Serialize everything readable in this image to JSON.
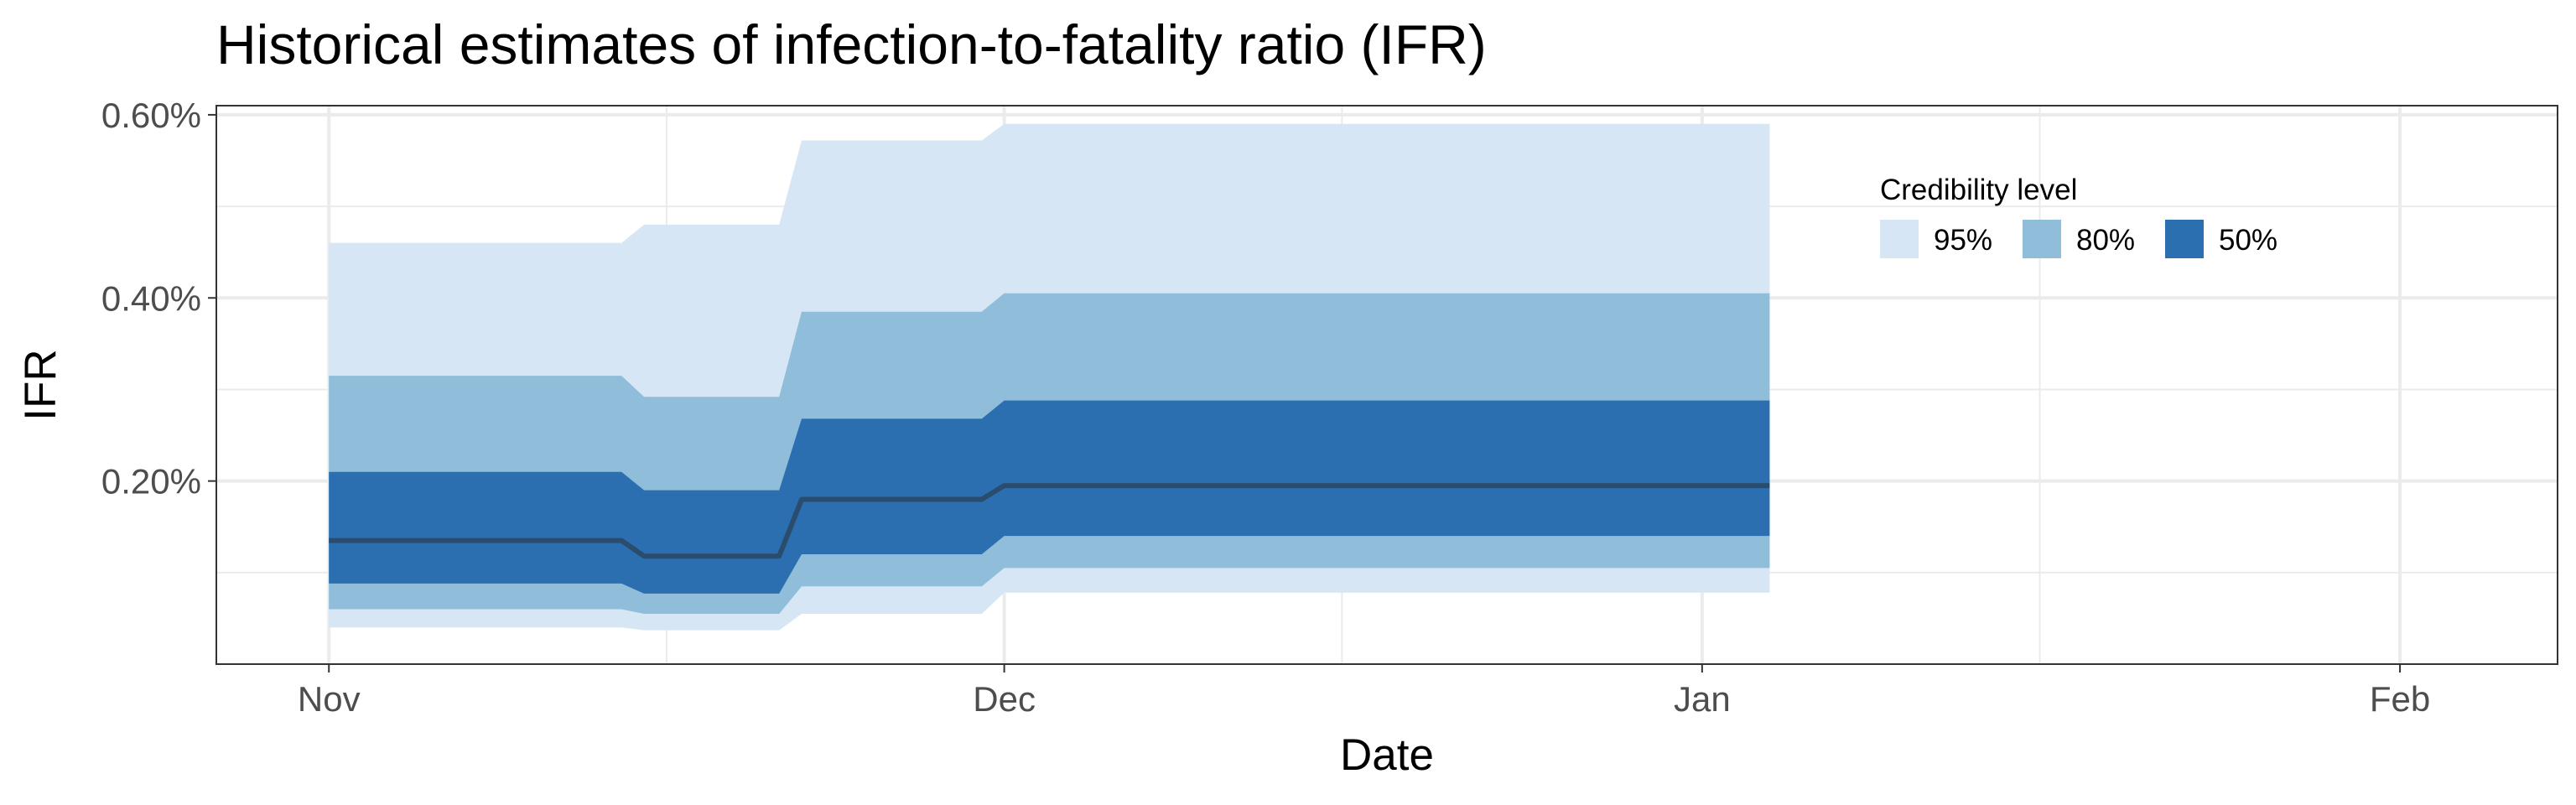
{
  "chart_data": {
    "type": "area",
    "title": "Historical estimates of infection-to-fatality ratio (IFR)",
    "xlabel": "Date",
    "ylabel": "IFR",
    "x_ticks": [
      "Nov",
      "Dec",
      "Jan",
      "Feb"
    ],
    "x_tick_dates": [
      "2020-11-01",
      "2020-12-01",
      "2021-01-01",
      "2021-02-01"
    ],
    "xlim": [
      "2020-10-27",
      "2021-02-08"
    ],
    "y_ticks": [
      0.002,
      0.004,
      0.006
    ],
    "y_tick_labels": [
      "0.20%",
      "0.40%",
      "0.60%"
    ],
    "ylim": [
      0.0,
      0.0061
    ],
    "grid": true,
    "legend": {
      "title": "Credibility level",
      "position": "top-right",
      "items": [
        {
          "label": "95%",
          "color": "#d6e6f4"
        },
        {
          "label": "80%",
          "color": "#8fbdda"
        },
        {
          "label": "50%",
          "color": "#2b6fb1"
        }
      ]
    },
    "median_color": "#2a4d6e",
    "x": [
      "2020-11-01",
      "2020-11-14",
      "2020-11-15",
      "2020-11-21",
      "2020-11-22",
      "2020-11-30",
      "2020-12-01",
      "2021-01-04"
    ],
    "bands": [
      {
        "level": "95%",
        "lower": [
          0.0004,
          0.0004,
          0.00037,
          0.00037,
          0.00055,
          0.00055,
          0.00078,
          0.00078
        ],
        "upper": [
          0.0046,
          0.0046,
          0.0048,
          0.0048,
          0.00572,
          0.00572,
          0.0059,
          0.0059
        ]
      },
      {
        "level": "80%",
        "lower": [
          0.0006,
          0.0006,
          0.00055,
          0.00055,
          0.00085,
          0.00085,
          0.00105,
          0.00105
        ],
        "upper": [
          0.00315,
          0.00315,
          0.00292,
          0.00292,
          0.00385,
          0.00385,
          0.00405,
          0.00405
        ]
      },
      {
        "level": "50%",
        "lower": [
          0.00088,
          0.00088,
          0.00077,
          0.00077,
          0.0012,
          0.0012,
          0.0014,
          0.0014
        ],
        "upper": [
          0.0021,
          0.0021,
          0.0019,
          0.0019,
          0.00268,
          0.00268,
          0.00288,
          0.00288
        ]
      }
    ],
    "median": [
      0.00135,
      0.00135,
      0.00118,
      0.00118,
      0.0018,
      0.0018,
      0.00195,
      0.00195
    ]
  }
}
